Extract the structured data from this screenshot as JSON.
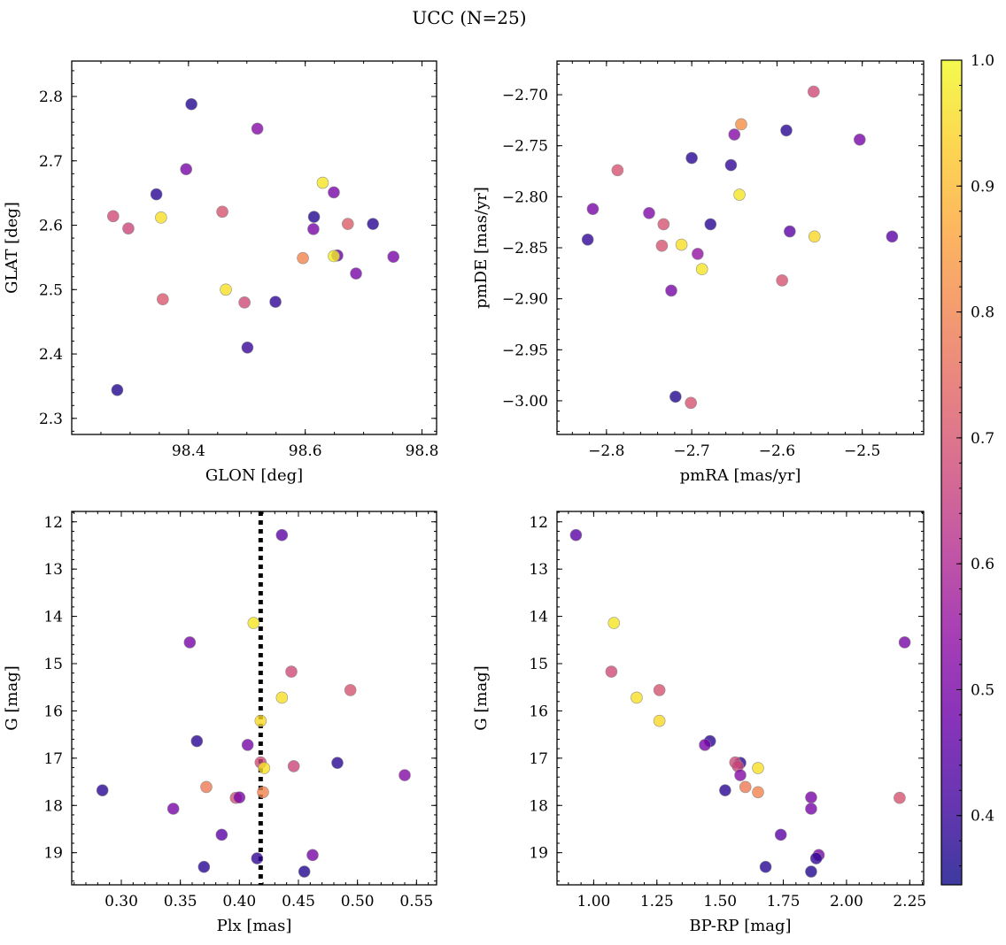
{
  "figure": {
    "title": "UCC (N=25)"
  },
  "colorbar": {
    "min": 0.345,
    "max": 1.0,
    "ticks": [
      "0.4",
      "0.5",
      "0.6",
      "0.7",
      "0.8",
      "0.9",
      "1.0"
    ],
    "tick_values": [
      0.4,
      0.5,
      0.6,
      0.7,
      0.8,
      0.9,
      1.0
    ],
    "colormap": "plasma",
    "stops": [
      "#0d0887",
      "#41049d",
      "#6a00a8",
      "#8f0da4",
      "#b12a90",
      "#cc4778",
      "#e16462",
      "#f2844b",
      "#fca636",
      "#fcce25",
      "#f0f921"
    ],
    "alpha": 0.8
  },
  "chart_data": [
    {
      "type": "scatter",
      "name": "glon-glat",
      "xlabel": "GLON [deg]",
      "ylabel": "GLAT [deg]",
      "xlim": [
        98.2,
        98.825
      ],
      "ylim": [
        2.275,
        2.855
      ],
      "xticks": [
        "98.4",
        "98.6",
        "98.8"
      ],
      "xtick_values": [
        98.4,
        98.6,
        98.8
      ],
      "yticks": [
        "2.3",
        "2.4",
        "2.5",
        "2.6",
        "2.7",
        "2.8"
      ],
      "ytick_values": [
        2.3,
        2.4,
        2.5,
        2.6,
        2.7,
        2.8
      ],
      "x_minor_step": 0.05,
      "y_minor_step": 0.02,
      "y_inverted": false,
      "points": [
        {
          "x": 98.405,
          "y": 2.788,
          "c": 0.37
        },
        {
          "x": 98.518,
          "y": 2.75,
          "c": 0.52
        },
        {
          "x": 98.396,
          "y": 2.687,
          "c": 0.5
        },
        {
          "x": 98.63,
          "y": 2.666,
          "c": 0.97
        },
        {
          "x": 98.649,
          "y": 2.651,
          "c": 0.5
        },
        {
          "x": 98.345,
          "y": 2.648,
          "c": 0.38
        },
        {
          "x": 98.458,
          "y": 2.621,
          "c": 0.7
        },
        {
          "x": 98.271,
          "y": 2.614,
          "c": 0.68
        },
        {
          "x": 98.353,
          "y": 2.612,
          "c": 0.96
        },
        {
          "x": 98.615,
          "y": 2.613,
          "c": 0.37
        },
        {
          "x": 98.297,
          "y": 2.595,
          "c": 0.67
        },
        {
          "x": 98.614,
          "y": 2.594,
          "c": 0.5
        },
        {
          "x": 98.673,
          "y": 2.602,
          "c": 0.72
        },
        {
          "x": 98.716,
          "y": 2.602,
          "c": 0.38
        },
        {
          "x": 98.596,
          "y": 2.549,
          "c": 0.8
        },
        {
          "x": 98.655,
          "y": 2.553,
          "c": 0.47
        },
        {
          "x": 98.649,
          "y": 2.552,
          "c": 0.98
        },
        {
          "x": 98.751,
          "y": 2.551,
          "c": 0.5
        },
        {
          "x": 98.687,
          "y": 2.525,
          "c": 0.5
        },
        {
          "x": 98.464,
          "y": 2.5,
          "c": 0.96
        },
        {
          "x": 98.356,
          "y": 2.485,
          "c": 0.71
        },
        {
          "x": 98.496,
          "y": 2.48,
          "c": 0.68
        },
        {
          "x": 98.549,
          "y": 2.481,
          "c": 0.39
        },
        {
          "x": 98.501,
          "y": 2.41,
          "c": 0.4
        },
        {
          "x": 98.278,
          "y": 2.344,
          "c": 0.37
        }
      ]
    },
    {
      "type": "scatter",
      "name": "pmra-pmde",
      "xlabel": "pmRA [mas/yr]",
      "ylabel": "pmDE [mas/yr]",
      "xlim": [
        -2.858,
        -2.428
      ],
      "ylim": [
        -3.033,
        -2.667
      ],
      "xticks": [
        "−2.8",
        "−2.7",
        "−2.6",
        "−2.5"
      ],
      "xtick_values": [
        -2.8,
        -2.7,
        -2.6,
        -2.5
      ],
      "yticks": [
        "−3.00",
        "−2.95",
        "−2.90",
        "−2.85",
        "−2.80",
        "−2.75",
        "−2.70"
      ],
      "ytick_values": [
        -3.0,
        -2.95,
        -2.9,
        -2.85,
        -2.8,
        -2.75,
        -2.7
      ],
      "x_minor_step": 0.02,
      "y_minor_step": 0.01,
      "y_inverted": false,
      "points": [
        {
          "x": -2.557,
          "y": -2.697,
          "c": 0.68
        },
        {
          "x": -2.642,
          "y": -2.729,
          "c": 0.82
        },
        {
          "x": -2.589,
          "y": -2.735,
          "c": 0.38
        },
        {
          "x": -2.65,
          "y": -2.739,
          "c": 0.52
        },
        {
          "x": -2.503,
          "y": -2.744,
          "c": 0.5
        },
        {
          "x": -2.7,
          "y": -2.762,
          "c": 0.38
        },
        {
          "x": -2.654,
          "y": -2.769,
          "c": 0.39
        },
        {
          "x": -2.787,
          "y": -2.774,
          "c": 0.7
        },
        {
          "x": -2.644,
          "y": -2.798,
          "c": 0.97
        },
        {
          "x": -2.816,
          "y": -2.812,
          "c": 0.5
        },
        {
          "x": -2.75,
          "y": -2.816,
          "c": 0.51
        },
        {
          "x": -2.733,
          "y": -2.827,
          "c": 0.7
        },
        {
          "x": -2.678,
          "y": -2.827,
          "c": 0.38
        },
        {
          "x": -2.585,
          "y": -2.834,
          "c": 0.45
        },
        {
          "x": -2.556,
          "y": -2.839,
          "c": 0.95
        },
        {
          "x": -2.465,
          "y": -2.839,
          "c": 0.45
        },
        {
          "x": -2.822,
          "y": -2.842,
          "c": 0.39
        },
        {
          "x": -2.735,
          "y": -2.848,
          "c": 0.7
        },
        {
          "x": -2.712,
          "y": -2.847,
          "c": 0.96
        },
        {
          "x": -2.693,
          "y": -2.856,
          "c": 0.55
        },
        {
          "x": -2.688,
          "y": -2.871,
          "c": 0.97
        },
        {
          "x": -2.594,
          "y": -2.882,
          "c": 0.7
        },
        {
          "x": -2.724,
          "y": -2.892,
          "c": 0.5
        },
        {
          "x": -2.719,
          "y": -2.996,
          "c": 0.37
        },
        {
          "x": -2.701,
          "y": -3.002,
          "c": 0.7
        }
      ]
    },
    {
      "type": "scatter",
      "name": "plx-g",
      "xlabel": "Plx [mas]",
      "ylabel": "G [mag]",
      "xlim": [
        0.258,
        0.567
      ],
      "ylim": [
        19.68,
        11.78
      ],
      "xticks": [
        "0.30",
        "0.35",
        "0.40",
        "0.45",
        "0.50",
        "0.55"
      ],
      "xtick_values": [
        0.3,
        0.35,
        0.4,
        0.45,
        0.5,
        0.55
      ],
      "yticks": [
        "12",
        "13",
        "14",
        "15",
        "16",
        "17",
        "18",
        "19"
      ],
      "ytick_values": [
        12,
        13,
        14,
        15,
        16,
        17,
        18,
        19
      ],
      "x_minor_step": 0.01,
      "y_minor_step": 0.2,
      "y_inverted": true,
      "vline": 0.418,
      "points": [
        {
          "x": 0.436,
          "y": 12.28,
          "c": 0.45
        },
        {
          "x": 0.412,
          "y": 14.14,
          "c": 0.97
        },
        {
          "x": 0.358,
          "y": 14.55,
          "c": 0.5
        },
        {
          "x": 0.444,
          "y": 15.17,
          "c": 0.68
        },
        {
          "x": 0.494,
          "y": 15.56,
          "c": 0.7
        },
        {
          "x": 0.436,
          "y": 15.72,
          "c": 0.96
        },
        {
          "x": 0.418,
          "y": 16.21,
          "c": 0.95
        },
        {
          "x": 0.364,
          "y": 16.64,
          "c": 0.38
        },
        {
          "x": 0.407,
          "y": 16.72,
          "c": 0.5
        },
        {
          "x": 0.418,
          "y": 17.09,
          "c": 0.68
        },
        {
          "x": 0.483,
          "y": 17.1,
          "c": 0.38
        },
        {
          "x": 0.446,
          "y": 17.17,
          "c": 0.67
        },
        {
          "x": 0.421,
          "y": 17.21,
          "c": 0.96
        },
        {
          "x": 0.54,
          "y": 17.36,
          "c": 0.52
        },
        {
          "x": 0.372,
          "y": 17.61,
          "c": 0.78
        },
        {
          "x": 0.284,
          "y": 17.68,
          "c": 0.38
        },
        {
          "x": 0.42,
          "y": 17.72,
          "c": 0.8
        },
        {
          "x": 0.397,
          "y": 17.84,
          "c": 0.7
        },
        {
          "x": 0.4,
          "y": 17.83,
          "c": 0.5
        },
        {
          "x": 0.344,
          "y": 18.07,
          "c": 0.5
        },
        {
          "x": 0.385,
          "y": 18.62,
          "c": 0.45
        },
        {
          "x": 0.462,
          "y": 19.05,
          "c": 0.5
        },
        {
          "x": 0.415,
          "y": 19.12,
          "c": 0.39
        },
        {
          "x": 0.37,
          "y": 19.3,
          "c": 0.38
        },
        {
          "x": 0.455,
          "y": 19.4,
          "c": 0.37
        }
      ]
    },
    {
      "type": "scatter",
      "name": "bprp-g",
      "xlabel": "BP-RP [mag]",
      "ylabel": "G [mag]",
      "xlim": [
        0.855,
        2.305
      ],
      "ylim": [
        19.68,
        11.78
      ],
      "xticks": [
        "1.00",
        "1.25",
        "1.50",
        "1.75",
        "2.00",
        "2.25"
      ],
      "xtick_values": [
        1.0,
        1.25,
        1.5,
        1.75,
        2.0,
        2.25
      ],
      "yticks": [
        "12",
        "13",
        "14",
        "15",
        "16",
        "17",
        "18",
        "19"
      ],
      "ytick_values": [
        12,
        13,
        14,
        15,
        16,
        17,
        18,
        19
      ],
      "x_minor_step": 0.05,
      "y_minor_step": 0.2,
      "y_inverted": true,
      "points": [
        {
          "x": 0.93,
          "y": 12.28,
          "c": 0.45
        },
        {
          "x": 1.08,
          "y": 14.14,
          "c": 0.97
        },
        {
          "x": 2.23,
          "y": 14.55,
          "c": 0.5
        },
        {
          "x": 1.07,
          "y": 15.17,
          "c": 0.68
        },
        {
          "x": 1.26,
          "y": 15.56,
          "c": 0.7
        },
        {
          "x": 1.17,
          "y": 15.72,
          "c": 0.96
        },
        {
          "x": 1.26,
          "y": 16.21,
          "c": 0.95
        },
        {
          "x": 1.46,
          "y": 16.64,
          "c": 0.38
        },
        {
          "x": 1.44,
          "y": 16.72,
          "c": 0.5
        },
        {
          "x": 1.58,
          "y": 17.1,
          "c": 0.38
        },
        {
          "x": 1.56,
          "y": 17.09,
          "c": 0.68
        },
        {
          "x": 1.57,
          "y": 17.17,
          "c": 0.67
        },
        {
          "x": 1.65,
          "y": 17.21,
          "c": 0.96
        },
        {
          "x": 1.58,
          "y": 17.36,
          "c": 0.52
        },
        {
          "x": 1.6,
          "y": 17.61,
          "c": 0.78
        },
        {
          "x": 1.52,
          "y": 17.68,
          "c": 0.38
        },
        {
          "x": 1.65,
          "y": 17.72,
          "c": 0.8
        },
        {
          "x": 1.86,
          "y": 17.83,
          "c": 0.5
        },
        {
          "x": 2.21,
          "y": 17.84,
          "c": 0.7
        },
        {
          "x": 1.86,
          "y": 18.07,
          "c": 0.5
        },
        {
          "x": 1.74,
          "y": 18.62,
          "c": 0.45
        },
        {
          "x": 1.89,
          "y": 19.05,
          "c": 0.5
        },
        {
          "x": 1.88,
          "y": 19.12,
          "c": 0.39
        },
        {
          "x": 1.68,
          "y": 19.3,
          "c": 0.38
        },
        {
          "x": 1.86,
          "y": 19.4,
          "c": 0.37
        }
      ]
    }
  ]
}
